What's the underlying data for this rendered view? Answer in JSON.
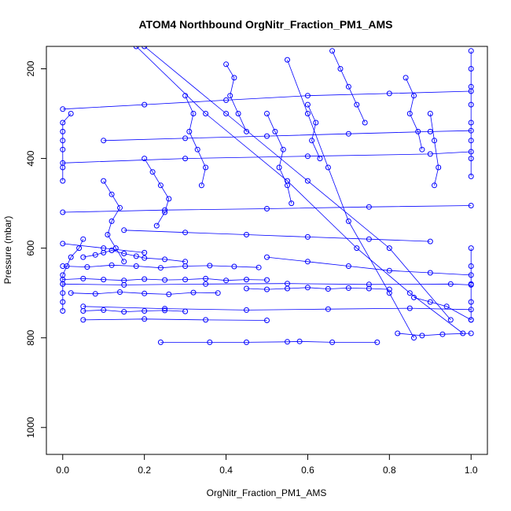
{
  "chart_data": {
    "type": "scatter",
    "title": "ATOM4 Northbound OrgNitr_Fraction_PM1_AMS",
    "xlabel": "OrgNitr_Fraction_PM1_AMS",
    "ylabel": "Pressure (mbar)",
    "xlim": [
      -0.04,
      1.04
    ],
    "ylim": [
      1060,
      150
    ],
    "y_axis_inverted": true,
    "grid": false,
    "x_ticks": [
      "0.0",
      "0.2",
      "0.4",
      "0.6",
      "0.8",
      "1.0"
    ],
    "y_ticks": [
      "200",
      "400",
      "600",
      "800",
      "1000"
    ],
    "x_tick_values": [
      0.0,
      0.2,
      0.4,
      0.6,
      0.8,
      1.0
    ],
    "y_tick_values": [
      200,
      400,
      600,
      800,
      1000
    ],
    "series_color": "#0000ff",
    "marker": "open-circle",
    "connected": true,
    "profiles": [
      {
        "x": [
          0.0,
          0.0,
          0.0,
          0.0,
          0.0,
          0.01,
          0.02,
          0.04,
          0.05
        ],
        "y": [
          740,
          720,
          700,
          680,
          660,
          640,
          620,
          600,
          580
        ]
      },
      {
        "x": [
          0.02,
          0.0,
          0.0,
          0.0,
          0.0,
          0.0,
          0.0
        ],
        "y": [
          300,
          320,
          340,
          360,
          380,
          420,
          450
        ]
      },
      {
        "x": [
          0.05,
          0.08,
          0.1,
          0.12,
          0.15,
          0.18,
          0.2,
          0.25,
          0.3
        ],
        "y": [
          620,
          615,
          610,
          605,
          612,
          618,
          622,
          625,
          630
        ]
      },
      {
        "x": [
          0.0,
          0.05,
          0.1,
          0.15,
          0.2,
          0.25,
          0.3,
          0.35,
          0.4,
          0.45,
          0.5
        ],
        "y": [
          670,
          668,
          670,
          672,
          669,
          671,
          670,
          668,
          672,
          670,
          671
        ]
      },
      {
        "x": [
          0.0,
          0.06,
          0.12,
          0.18,
          0.24,
          0.3,
          0.36,
          0.42,
          0.48
        ],
        "y": [
          640,
          642,
          638,
          640,
          644,
          640,
          639,
          641,
          643
        ]
      },
      {
        "x": [
          0.02,
          0.08,
          0.14,
          0.2,
          0.26,
          0.32,
          0.38
        ],
        "y": [
          700,
          702,
          698,
          701,
          703,
          699,
          700
        ]
      },
      {
        "x": [
          0.05,
          0.1,
          0.15,
          0.2,
          0.25,
          0.3
        ],
        "y": [
          740,
          738,
          742,
          740,
          739,
          741
        ]
      },
      {
        "x": [
          0.24,
          0.36,
          0.45,
          0.55,
          0.58,
          0.66,
          0.77
        ],
        "y": [
          810,
          810,
          810,
          809,
          808,
          810,
          810
        ]
      },
      {
        "x": [
          0.1,
          0.12,
          0.14,
          0.12,
          0.11,
          0.13,
          0.15
        ],
        "y": [
          450,
          480,
          510,
          540,
          570,
          600,
          630
        ]
      },
      {
        "x": [
          0.2,
          0.22,
          0.24,
          0.26,
          0.25,
          0.23
        ],
        "y": [
          400,
          430,
          460,
          490,
          520,
          550
        ]
      },
      {
        "x": [
          0.3,
          0.32,
          0.31,
          0.33,
          0.35,
          0.34
        ],
        "y": [
          260,
          300,
          340,
          380,
          420,
          460
        ]
      },
      {
        "x": [
          0.4,
          0.42,
          0.41,
          0.43,
          0.45
        ],
        "y": [
          190,
          220,
          260,
          300,
          340
        ]
      },
      {
        "x": [
          0.5,
          0.52,
          0.54,
          0.53,
          0.55,
          0.56
        ],
        "y": [
          300,
          340,
          380,
          420,
          460,
          500
        ]
      },
      {
        "x": [
          0.6,
          0.62,
          0.61,
          0.63
        ],
        "y": [
          280,
          320,
          360,
          400
        ]
      },
      {
        "x": [
          0.66,
          0.68,
          0.7,
          0.72,
          0.74
        ],
        "y": [
          160,
          200,
          240,
          280,
          320
        ]
      },
      {
        "x": [
          0.84,
          0.86,
          0.85,
          0.87,
          0.88
        ],
        "y": [
          220,
          260,
          300,
          340,
          380
        ]
      },
      {
        "x": [
          0.9,
          0.91,
          0.92,
          0.91
        ],
        "y": [
          300,
          360,
          420,
          460
        ]
      },
      {
        "x": [
          1.0,
          1.0,
          1.0,
          1.0,
          1.0,
          1.0,
          1.0,
          1.0
        ],
        "y": [
          160,
          200,
          240,
          280,
          320,
          360,
          400,
          440
        ]
      },
      {
        "x": [
          1.0,
          1.0,
          1.0,
          1.0,
          1.0
        ],
        "y": [
          600,
          640,
          680,
          720,
          760
        ]
      },
      {
        "x": [
          0.0,
          0.2,
          0.4,
          0.6,
          0.8,
          1.0
        ],
        "y": [
          290,
          280,
          270,
          260,
          255,
          250
        ]
      },
      {
        "x": [
          0.0,
          0.3,
          0.6,
          0.9,
          1.0
        ],
        "y": [
          410,
          400,
          395,
          390,
          385
        ]
      },
      {
        "x": [
          0.0,
          0.25,
          0.5,
          0.75,
          1.0
        ],
        "y": [
          520,
          515,
          512,
          508,
          505
        ]
      },
      {
        "x": [
          0.1,
          0.3,
          0.5,
          0.7,
          0.9,
          1.0
        ],
        "y": [
          360,
          355,
          350,
          345,
          340,
          338
        ]
      },
      {
        "x": [
          0.18,
          0.35,
          0.55,
          0.72,
          0.85,
          0.98
        ],
        "y": [
          150,
          300,
          450,
          600,
          700,
          790
        ]
      },
      {
        "x": [
          0.2,
          0.4,
          0.6,
          0.8,
          0.95
        ],
        "y": [
          150,
          300,
          450,
          600,
          760
        ]
      },
      {
        "x": [
          0.55,
          0.6,
          0.65,
          0.7,
          0.8,
          0.86
        ],
        "y": [
          180,
          300,
          420,
          540,
          700,
          800
        ]
      },
      {
        "x": [
          0.0,
          0.15,
          0.35,
          0.55,
          0.75,
          0.95,
          1.0
        ],
        "y": [
          680,
          682,
          680,
          679,
          681,
          680,
          682
        ]
      },
      {
        "x": [
          0.05,
          0.25,
          0.45,
          0.65,
          0.85,
          1.0
        ],
        "y": [
          730,
          735,
          738,
          736,
          734,
          737
        ]
      },
      {
        "x": [
          0.0,
          0.1,
          0.2
        ],
        "y": [
          590,
          600,
          610
        ]
      },
      {
        "x": [
          0.45,
          0.5,
          0.55,
          0.6,
          0.65,
          0.7,
          0.75,
          0.8
        ],
        "y": [
          690,
          692,
          690,
          688,
          691,
          689,
          690,
          692
        ]
      },
      {
        "x": [
          0.82,
          0.88,
          0.93,
          1.0
        ],
        "y": [
          790,
          795,
          792,
          790
        ]
      },
      {
        "x": [
          0.5,
          0.6,
          0.7,
          0.8,
          0.9,
          1.0
        ],
        "y": [
          620,
          630,
          640,
          650,
          655,
          660
        ]
      },
      {
        "x": [
          0.15,
          0.3,
          0.45,
          0.6,
          0.75,
          0.9
        ],
        "y": [
          560,
          565,
          570,
          575,
          580,
          585
        ]
      },
      {
        "x": [
          0.05,
          0.2,
          0.35,
          0.5
        ],
        "y": [
          760,
          758,
          760,
          761
        ]
      },
      {
        "x": [
          0.86,
          0.9,
          0.94,
          1.0
        ],
        "y": [
          710,
          720,
          730,
          760
        ]
      }
    ]
  }
}
